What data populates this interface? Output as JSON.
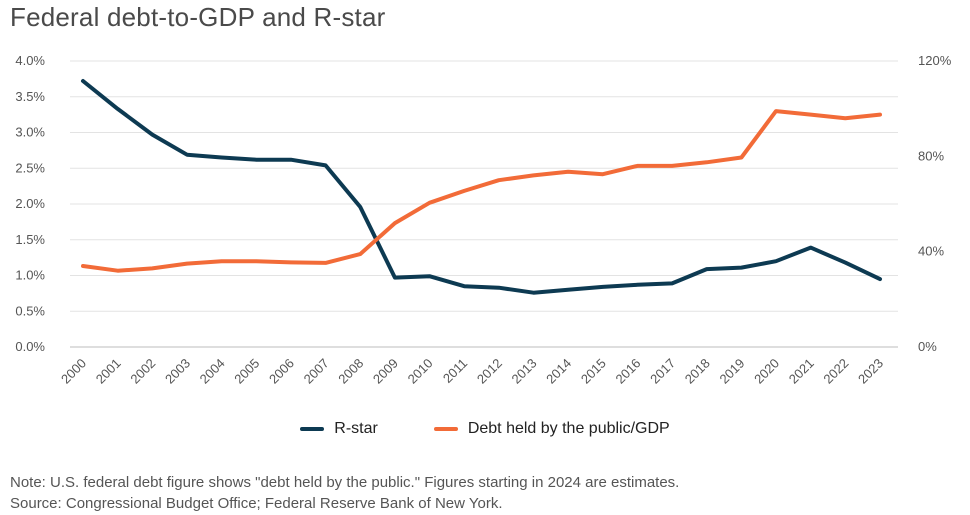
{
  "title": "Federal debt-to-GDP and R-star",
  "note": "Note: U.S. federal debt figure shows \"debt held by the public.\" Figures starting in 2024 are estimates.",
  "source": "Source: Congressional Budget Office; Federal Reserve Bank of New York.",
  "legend": {
    "rstar": "R-star",
    "debt": "Debt held by the public/GDP"
  },
  "chart_data": {
    "type": "line",
    "title": "Federal debt-to-GDP and R-star",
    "categories": [
      "2000",
      "2001",
      "2002",
      "2003",
      "2004",
      "2005",
      "2006",
      "2007",
      "2008",
      "2009",
      "2010",
      "2011",
      "2012",
      "2013",
      "2014",
      "2015",
      "2016",
      "2017",
      "2018",
      "2019",
      "2020",
      "2021",
      "2022",
      "2023"
    ],
    "series": [
      {
        "name": "R-star",
        "axis": "left",
        "color": "#0d3a52",
        "values": [
          3.72,
          3.33,
          2.97,
          2.69,
          2.65,
          2.62,
          2.62,
          2.54,
          1.96,
          0.97,
          0.99,
          0.85,
          0.83,
          0.76,
          0.8,
          0.84,
          0.87,
          0.89,
          1.09,
          1.11,
          1.2,
          1.39,
          1.18,
          0.95
        ]
      },
      {
        "name": "Debt held by the public/GDP",
        "axis": "right",
        "color": "#f26b38",
        "values": [
          34,
          32,
          33,
          35,
          36,
          36,
          35.5,
          35.3,
          39,
          52,
          60.5,
          65.5,
          70,
          72,
          73.5,
          72.5,
          76,
          76,
          77.5,
          79.5,
          99,
          97.5,
          96,
          97.5
        ]
      }
    ],
    "left_axis": {
      "min": 0,
      "max": 4.0,
      "ticks": [
        "0.0%",
        "0.5%",
        "1.0%",
        "1.5%",
        "2.0%",
        "2.5%",
        "3.0%",
        "3.5%",
        "4.0%"
      ]
    },
    "right_axis": {
      "min": 0,
      "max": 120,
      "ticks": [
        "0%",
        "40%",
        "80%",
        "120%"
      ]
    },
    "grid": true,
    "legend_position": "bottom"
  }
}
